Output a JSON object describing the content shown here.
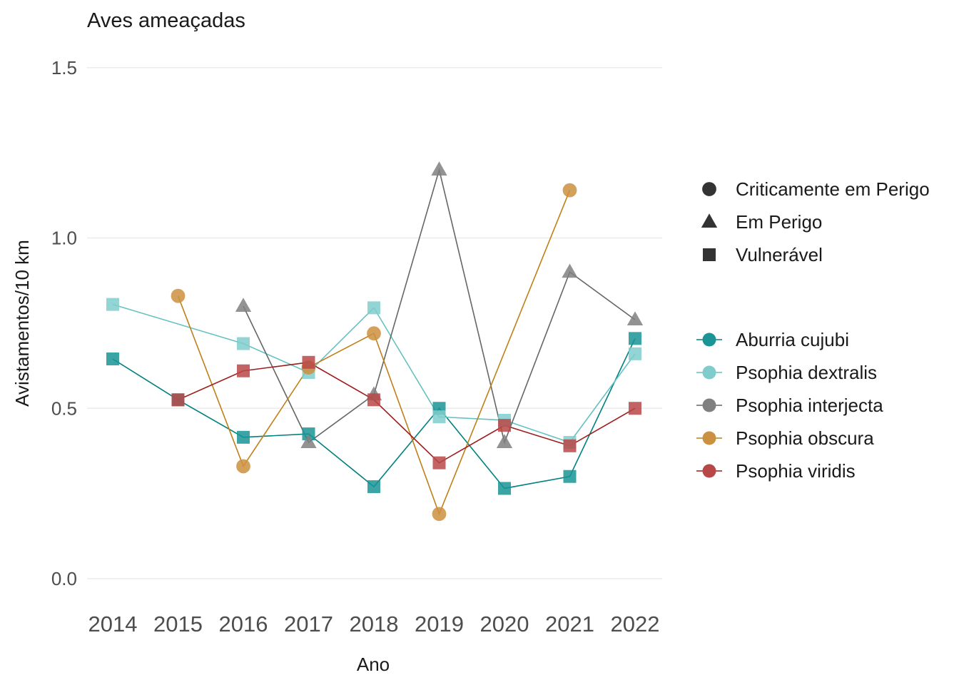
{
  "chart_data": {
    "type": "line",
    "title": "Aves ameaçadas",
    "xlabel": "Ano",
    "ylabel": "Avistamentos/10 km",
    "x": [
      2014,
      2015,
      2016,
      2017,
      2018,
      2019,
      2020,
      2021,
      2022
    ],
    "ylim": [
      -0.05,
      1.6
    ],
    "yticks": [
      0.0,
      0.5,
      1.0,
      1.5
    ],
    "ytick_labels": [
      "0.0",
      "0.5",
      "1.0",
      "1.5"
    ],
    "grid": true,
    "legend_position": "right",
    "shape_legend": [
      {
        "label": "Criticamente em Perigo",
        "shape": "circle"
      },
      {
        "label": "Em Perigo",
        "shape": "triangle"
      },
      {
        "label": "Vulnerável",
        "shape": "square"
      }
    ],
    "series": [
      {
        "name": "Aburria cujubi",
        "color": "#1a9494",
        "line_color": "#008080",
        "shape": "square",
        "points": [
          [
            2014,
            0.645
          ],
          [
            2015,
            0.525
          ],
          [
            2016,
            0.415
          ],
          [
            2017,
            0.425
          ],
          [
            2018,
            0.27
          ],
          [
            2019,
            0.5
          ],
          [
            2020,
            0.265
          ],
          [
            2021,
            0.3
          ],
          [
            2022,
            0.705
          ]
        ]
      },
      {
        "name": "Psophia dextralis",
        "color": "#80cccc",
        "line_color": "#66c2c2",
        "shape": "square",
        "points": [
          [
            2014,
            0.805
          ],
          [
            2016,
            0.69
          ],
          [
            2017,
            0.605
          ],
          [
            2018,
            0.795
          ],
          [
            2019,
            0.475
          ],
          [
            2020,
            0.465
          ],
          [
            2021,
            0.4
          ],
          [
            2022,
            0.66
          ]
        ]
      },
      {
        "name": "Psophia interjecta",
        "color": "#808080",
        "line_color": "#666666",
        "shape": "triangle",
        "points": [
          [
            2016,
            0.8
          ],
          [
            2017,
            0.4
          ],
          [
            2018,
            0.54
          ],
          [
            2019,
            1.2
          ],
          [
            2020,
            0.4
          ],
          [
            2021,
            0.9
          ],
          [
            2022,
            0.76
          ]
        ]
      },
      {
        "name": "Psophia obscura",
        "color": "#cc9140",
        "line_color": "#bf7f1a",
        "shape": "circle",
        "points": [
          [
            2015,
            0.83
          ],
          [
            2016,
            0.33
          ],
          [
            2017,
            0.62
          ],
          [
            2018,
            0.72
          ],
          [
            2019,
            0.19
          ],
          [
            2021,
            1.14
          ]
        ]
      },
      {
        "name": "Psophia viridis",
        "color": "#b84848",
        "line_color": "#9e1c1c",
        "shape": "square",
        "points": [
          [
            2015,
            0.525
          ],
          [
            2016,
            0.61
          ],
          [
            2017,
            0.635
          ],
          [
            2018,
            0.525
          ],
          [
            2019,
            0.34
          ],
          [
            2020,
            0.45
          ],
          [
            2021,
            0.39
          ],
          [
            2022,
            0.5
          ]
        ]
      }
    ]
  }
}
